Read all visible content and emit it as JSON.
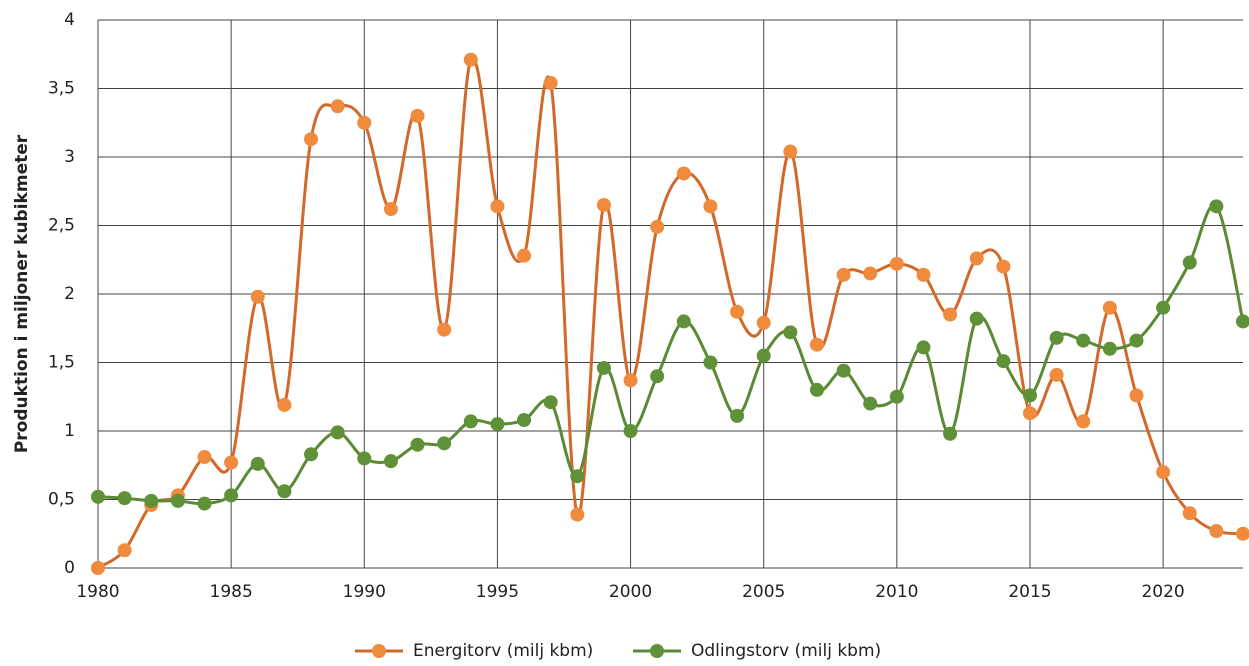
{
  "chart_data": {
    "type": "line",
    "y_label": "Produktion i miljoner kubikmeter",
    "x": [
      1980,
      1981,
      1982,
      1983,
      1984,
      1985,
      1986,
      1987,
      1988,
      1989,
      1990,
      1991,
      1992,
      1993,
      1994,
      1995,
      1996,
      1997,
      1998,
      1999,
      2000,
      2001,
      2002,
      2003,
      2004,
      2005,
      2006,
      2007,
      2008,
      2009,
      2010,
      2011,
      2012,
      2013,
      2014,
      2015,
      2016,
      2017,
      2018,
      2019,
      2020,
      2021,
      2022,
      2023
    ],
    "series": [
      {
        "name": "Energitorv (milj kbm)",
        "color": "#d2692b",
        "marker_color": "#f08a3c",
        "values": [
          0,
          0.13,
          0.46,
          0.53,
          0.81,
          0.77,
          1.98,
          1.19,
          3.13,
          3.37,
          3.25,
          2.62,
          3.3,
          1.74,
          3.71,
          2.64,
          2.28,
          3.54,
          0.39,
          2.65,
          1.37,
          2.49,
          2.88,
          2.64,
          1.87,
          1.79,
          3.04,
          1.63,
          2.14,
          2.15,
          2.22,
          2.14,
          1.85,
          2.26,
          2.2,
          1.13,
          1.41,
          1.07,
          1.9,
          1.26,
          0.7,
          0.4,
          0.27,
          0.25
        ]
      },
      {
        "name": "Odlingstorv (milj kbm)",
        "color": "#5a8a33",
        "marker_color": "#5e9138",
        "values": [
          0.52,
          0.51,
          0.49,
          0.49,
          0.47,
          0.53,
          0.76,
          0.56,
          0.83,
          0.99,
          0.8,
          0.78,
          0.9,
          0.91,
          1.07,
          1.05,
          1.08,
          1.21,
          0.67,
          1.46,
          1.0,
          1.4,
          1.8,
          1.5,
          1.11,
          1.55,
          1.72,
          1.3,
          1.44,
          1.2,
          1.25,
          1.61,
          0.98,
          1.82,
          1.51,
          1.26,
          1.68,
          1.66,
          1.6,
          1.66,
          1.9,
          2.23,
          2.64,
          1.8
        ]
      }
    ],
    "xlim": [
      1980,
      2023
    ],
    "xticks": [
      1980,
      1985,
      1990,
      1995,
      2000,
      2005,
      2010,
      2015,
      2020
    ],
    "ylim": [
      0,
      4
    ],
    "yticks": [
      0,
      {
        "value": 0.5,
        "label": "0,5"
      },
      1,
      {
        "value": 1.5,
        "label": "1,5"
      },
      2,
      {
        "value": 2.5,
        "label": "2,5"
      },
      3,
      {
        "value": 3.5,
        "label": "3,5"
      },
      4
    ],
    "grid": true,
    "legend": "bottom"
  }
}
